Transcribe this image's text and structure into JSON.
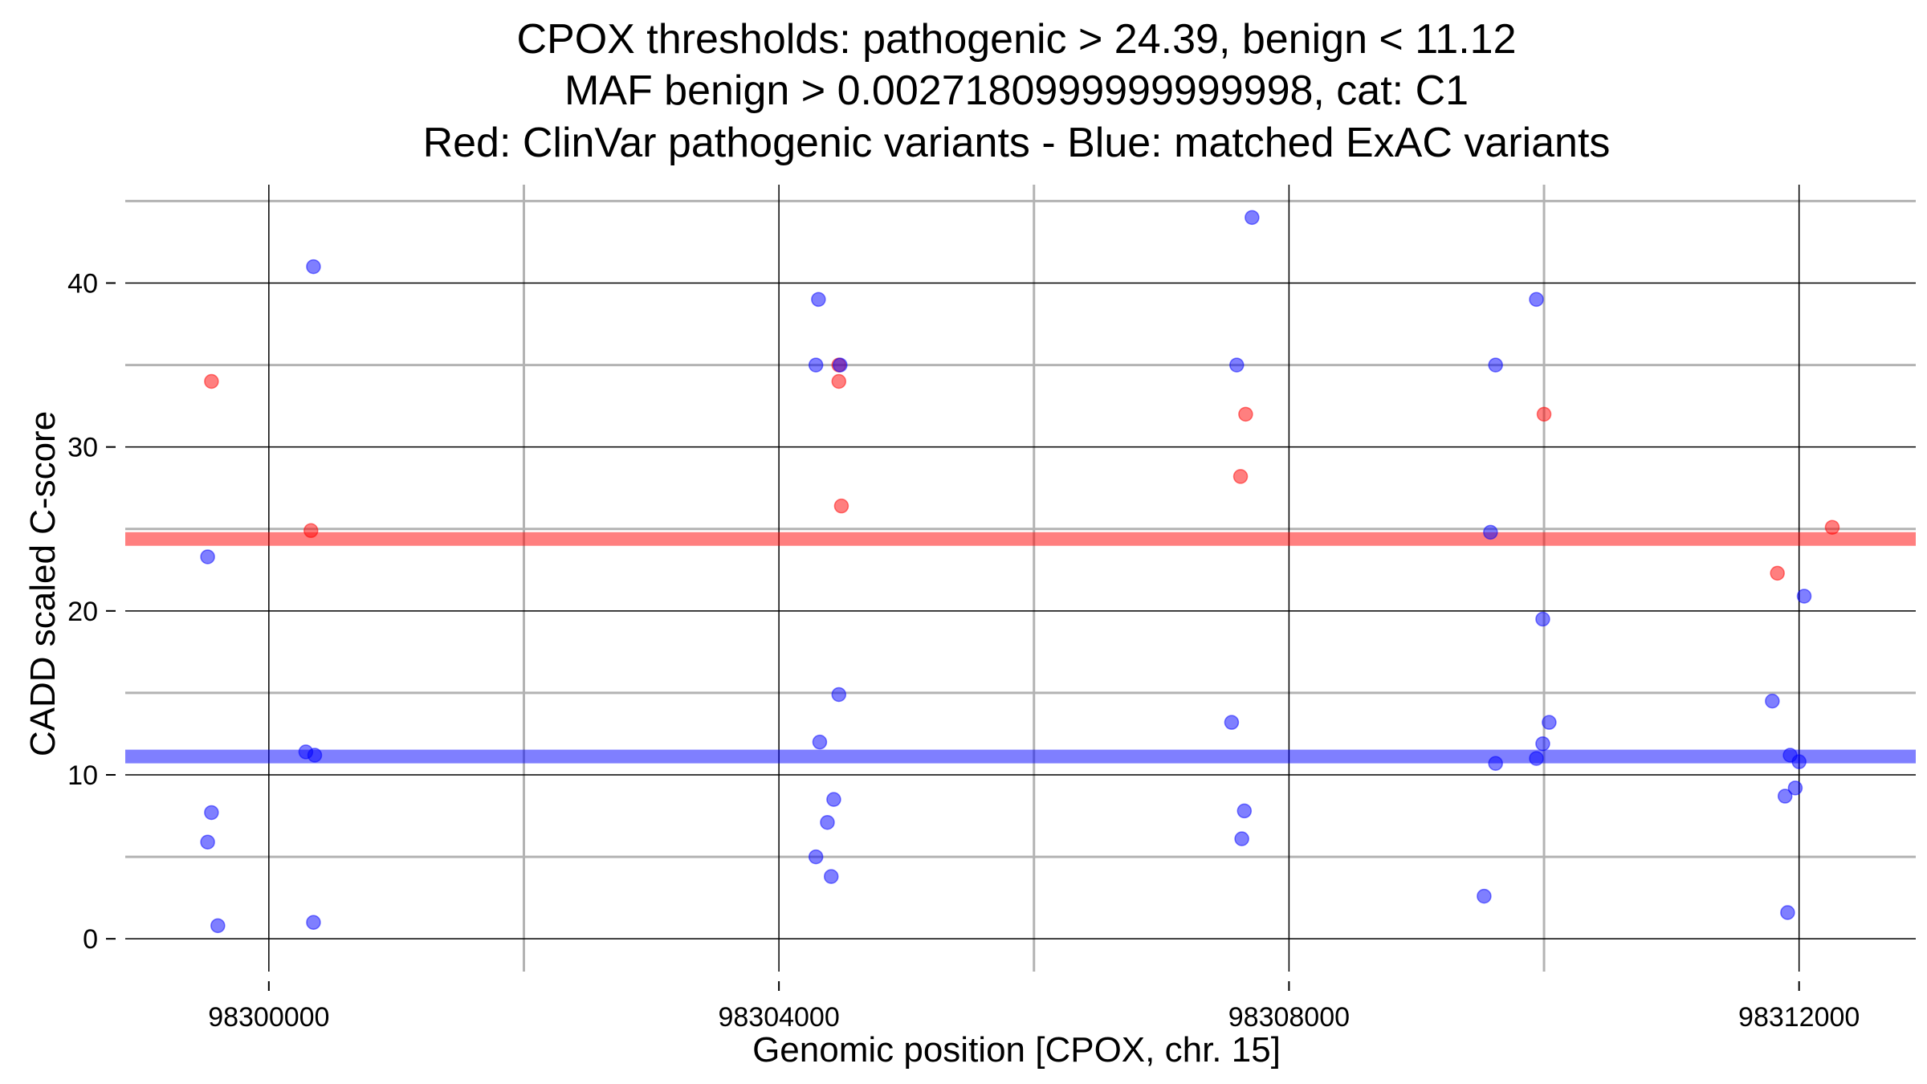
{
  "chart_data": {
    "type": "scatter",
    "title_lines": [
      "CPOX thresholds: pathogenic > 24.39, benign < 11.12",
      "MAF benign > 0.0027180999999999998, cat: C1",
      "Red: ClinVar pathogenic variants - Blue: matched ExAC variants"
    ],
    "xlabel": "Genomic position [CPOX, chr. 15]",
    "ylabel": "CADD scaled C-score",
    "xlim": [
      98298874,
      98312915
    ],
    "ylim": [
      -2.0,
      46.0
    ],
    "x_ticks": [
      {
        "value": 98300000,
        "label": "98300000"
      },
      {
        "value": 98304000,
        "label": "98304000"
      },
      {
        "value": 98308000,
        "label": "98308000"
      },
      {
        "value": 98312000,
        "label": "98312000"
      }
    ],
    "x_minor_ticks": [
      98302000,
      98306000,
      98310000
    ],
    "y_ticks": [
      {
        "value": 0,
        "label": "0"
      },
      {
        "value": 10,
        "label": "10"
      },
      {
        "value": 20,
        "label": "20"
      },
      {
        "value": 30,
        "label": "30"
      },
      {
        "value": 40,
        "label": "40"
      }
    ],
    "y_minor_ticks": [
      5,
      15,
      25,
      35,
      45
    ],
    "grid": true,
    "thresholds": [
      {
        "name": "pathogenic",
        "value": 24.39,
        "color": "#ff0000"
      },
      {
        "name": "benign",
        "value": 11.12,
        "color": "#0000ff"
      }
    ],
    "series": [
      {
        "color": "#ff0000",
        "points": [
          [
            98299550,
            34.0
          ],
          [
            98300330,
            24.9
          ],
          [
            98304470,
            35.0
          ],
          [
            98304470,
            34.0
          ],
          [
            98304490,
            26.4
          ],
          [
            98307620,
            28.2
          ],
          [
            98307660,
            32.0
          ],
          [
            98310000,
            32.0
          ],
          [
            98311830,
            22.3
          ],
          [
            98312260,
            25.1
          ]
        ]
      },
      {
        "color": "#0000ff",
        "points": [
          [
            98299520,
            23.3
          ],
          [
            98299550,
            7.7
          ],
          [
            98299520,
            5.9
          ],
          [
            98299600,
            0.8
          ],
          [
            98300350,
            41.0
          ],
          [
            98300290,
            11.4
          ],
          [
            98300360,
            11.2
          ],
          [
            98300350,
            1.0
          ],
          [
            98304310,
            39.0
          ],
          [
            98304290,
            35.0
          ],
          [
            98304480,
            35.0
          ],
          [
            98304470,
            14.9
          ],
          [
            98304320,
            12.0
          ],
          [
            98304430,
            8.5
          ],
          [
            98304380,
            7.1
          ],
          [
            98304290,
            5.0
          ],
          [
            98304410,
            3.8
          ],
          [
            98307710,
            44.0
          ],
          [
            98307590,
            35.0
          ],
          [
            98307550,
            13.2
          ],
          [
            98307650,
            7.8
          ],
          [
            98307630,
            6.1
          ],
          [
            98309620,
            35.0
          ],
          [
            98309940,
            39.0
          ],
          [
            98309580,
            24.8
          ],
          [
            98309990,
            19.5
          ],
          [
            98310040,
            13.2
          ],
          [
            98309990,
            11.9
          ],
          [
            98309940,
            11.0
          ],
          [
            98309620,
            10.7
          ],
          [
            98309530,
            2.6
          ],
          [
            98312040,
            20.9
          ],
          [
            98311790,
            14.5
          ],
          [
            98311930,
            11.2
          ],
          [
            98312000,
            10.8
          ],
          [
            98311890,
            8.7
          ],
          [
            98311970,
            9.2
          ],
          [
            98311910,
            1.6
          ]
        ]
      }
    ]
  }
}
